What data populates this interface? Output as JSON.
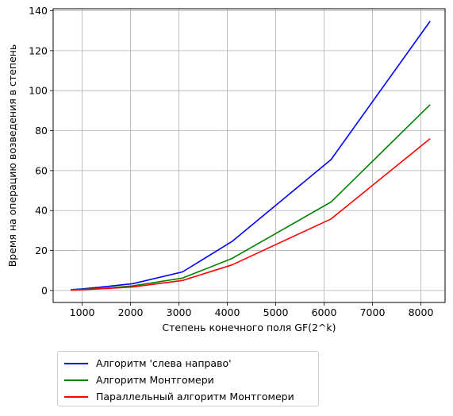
{
  "chart_data": {
    "type": "line",
    "title": "",
    "xlabel": "Степень конечного поля GF(2^k)",
    "ylabel": "Время на операцию возведения в степень",
    "xlim": [
      400,
      8500
    ],
    "ylim": [
      -6,
      141
    ],
    "x_ticks": [
      1000,
      2000,
      3000,
      4000,
      5000,
      6000,
      7000,
      8000
    ],
    "y_ticks": [
      0,
      20,
      40,
      60,
      80,
      100,
      120,
      140
    ],
    "grid": true,
    "legend_position": "below",
    "x": [
      763,
      1000,
      1500,
      2048,
      3072,
      4096,
      6144,
      8192
    ],
    "series": [
      {
        "name": "Алгоритм 'слева направо'",
        "color": "#0000ff",
        "values": [
          0.4,
          0.8,
          2.0,
          3.4,
          9.3,
          24.5,
          65.5,
          134.8
        ]
      },
      {
        "name": "Алгоритм Монтгомери",
        "color": "#008000",
        "values": [
          0.3,
          0.5,
          1.2,
          2.3,
          6.2,
          16.0,
          44.3,
          93.0
        ]
      },
      {
        "name": "Параллельный алгоритм Монтгомери",
        "color": "#ff0000",
        "values": [
          0.2,
          0.4,
          1.0,
          1.8,
          5.0,
          12.8,
          35.8,
          76.0
        ]
      }
    ]
  }
}
